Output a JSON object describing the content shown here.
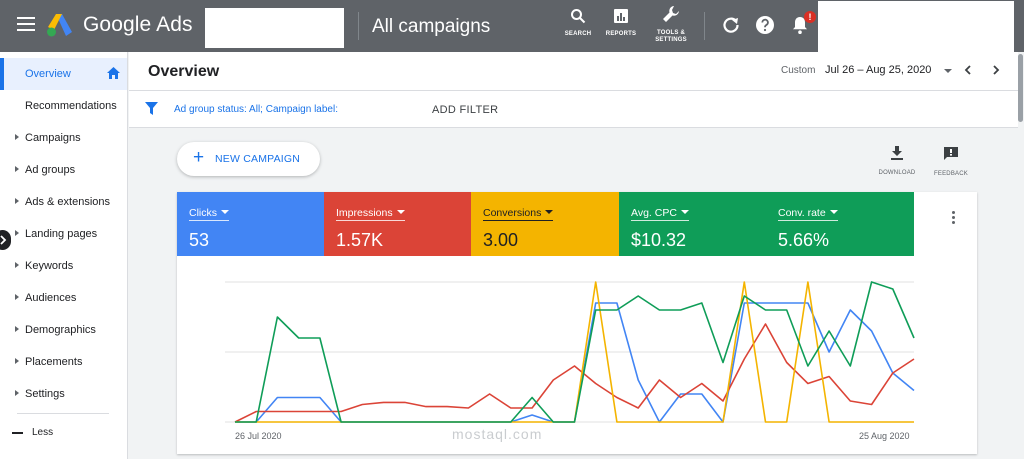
{
  "topbar": {
    "brand": "Google Ads",
    "page_heading": "All campaigns",
    "tools": [
      {
        "label": "SEARCH",
        "icon": "search-icon"
      },
      {
        "label": "REPORTS",
        "icon": "reports-icon"
      },
      {
        "label": "TOOLS &",
        "label2": "SETTINGS",
        "icon": "wrench-icon"
      }
    ],
    "notification_badge": "!"
  },
  "sidebar": {
    "items": [
      {
        "label": "Overview",
        "active": true
      },
      {
        "label": "Recommendations"
      },
      {
        "label": "Campaigns"
      },
      {
        "label": "Ad groups"
      },
      {
        "label": "Ads & extensions"
      },
      {
        "label": "Landing pages"
      },
      {
        "label": "Keywords"
      },
      {
        "label": "Audiences"
      },
      {
        "label": "Demographics"
      },
      {
        "label": "Placements"
      },
      {
        "label": "Settings"
      }
    ],
    "less_label": "Less"
  },
  "header": {
    "title": "Overview",
    "date_mode": "Custom",
    "date_range": "Jul 26 – Aug 25, 2020"
  },
  "filter": {
    "text": "Ad group status: All; Campaign label:",
    "add_filter_label": "ADD FILTER"
  },
  "actions": {
    "new_campaign_label": "NEW CAMPAIGN",
    "download_label": "DOWNLOAD",
    "feedback_label": "FEEDBACK"
  },
  "metrics": [
    {
      "name": "Clicks",
      "value": "53",
      "color": "#4285f4"
    },
    {
      "name": "Impressions",
      "value": "1.57K",
      "color": "#db4437"
    },
    {
      "name": "Conversions",
      "value": "3.00",
      "color": "#f4b400"
    },
    {
      "name": "Avg. CPC",
      "value": "$10.32",
      "color": "#0f9d58"
    },
    {
      "name": "Conv. rate",
      "value": "5.66%",
      "color": "#0f9d58"
    }
  ],
  "chart_data": {
    "type": "line",
    "x_start_label": "26 Jul 2020",
    "x_end_label": "25 Aug 2020",
    "ylim": [
      0,
      2
    ],
    "grid": true,
    "legend": "none",
    "series": [
      {
        "color": "#4285f4",
        "values": [
          0,
          0,
          0.35,
          0.35,
          0.35,
          0,
          0,
          0,
          0,
          0,
          0,
          0,
          0,
          0,
          0.1,
          0,
          0,
          1.7,
          1.7,
          0.6,
          0,
          0.4,
          0.4,
          0,
          1.7,
          1.7,
          1.7,
          1.7,
          1.0,
          1.6,
          1.3,
          0.7,
          0.45
        ]
      },
      {
        "color": "#db4437",
        "values": [
          0,
          0.15,
          0.15,
          0.15,
          0.15,
          0.15,
          0.25,
          0.28,
          0.28,
          0.22,
          0.22,
          0.2,
          0.4,
          0.2,
          0.2,
          0.6,
          0.8,
          0.55,
          0.35,
          0.2,
          0.6,
          0.35,
          0.55,
          0.3,
          0.9,
          1.4,
          0.85,
          0.55,
          0.65,
          0.3,
          0.25,
          0.7,
          0.9
        ]
      },
      {
        "color": "#f4b400",
        "values": [
          0,
          0,
          0,
          0,
          0,
          0,
          0,
          0,
          0,
          0,
          0,
          0,
          0,
          0,
          0,
          0,
          0,
          2,
          0,
          0,
          0,
          0,
          0,
          0,
          2,
          0,
          0,
          2,
          0,
          0,
          0,
          0,
          0
        ]
      },
      {
        "color": "#0f9d58",
        "values": [
          0,
          0,
          1.5,
          1.2,
          1.2,
          0,
          0,
          0,
          0,
          0,
          0,
          0,
          0,
          0,
          0.35,
          0,
          0,
          1.6,
          1.6,
          1.8,
          1.6,
          1.6,
          1.7,
          0.85,
          1.8,
          1.6,
          1.6,
          0.8,
          1.3,
          0.8,
          2.0,
          1.9,
          1.2
        ]
      }
    ]
  },
  "watermark": "mostaql.com"
}
